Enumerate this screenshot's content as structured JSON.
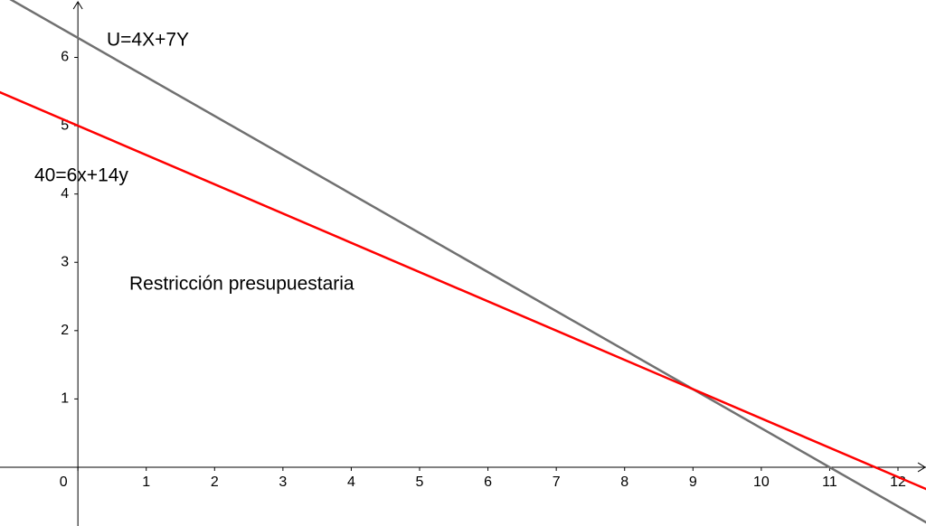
{
  "chart_data": {
    "type": "line",
    "annotation": "Restricción presupuestaria",
    "xlim": [
      -1.14,
      12.41
    ],
    "ylim": [
      -0.86,
      6.84
    ],
    "xticks": [
      0,
      1,
      2,
      3,
      4,
      5,
      6,
      7,
      8,
      9,
      10,
      11,
      12
    ],
    "yticks": [
      1,
      2,
      3,
      4,
      5,
      6
    ],
    "series": [
      {
        "name": "U=4X+7Y",
        "color": "#707070",
        "x": [
          -1.2,
          12.5
        ],
        "values": [
          6.971,
          -0.857
        ]
      },
      {
        "name": "40=6x+14y",
        "color": "#ff0000",
        "x": [
          -1.2,
          12.5
        ],
        "values": [
          5.514,
          -0.357
        ]
      }
    ]
  }
}
